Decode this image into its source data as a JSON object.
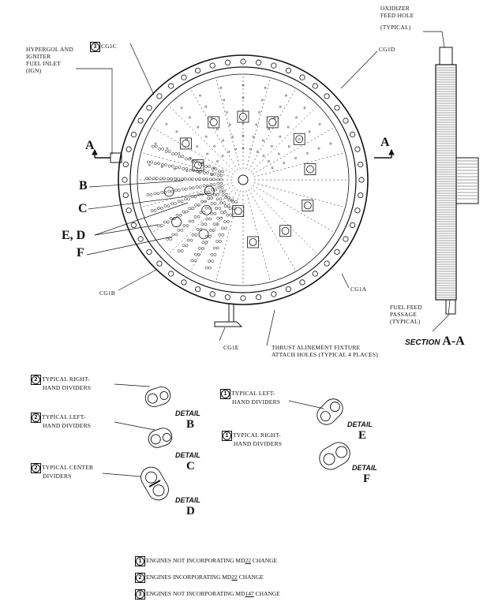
{
  "labels": {
    "hypergol": [
      "HYPERGOL AND",
      "IGNITER",
      "FUEL INLET",
      "(IGN)"
    ],
    "oxidizer": [
      "OXIDIZER",
      "FEED HOLE",
      "(TYPICAL)"
    ],
    "fuel_feed": [
      "FUEL FEED",
      "PASSAGE",
      "(TYPICAL)"
    ],
    "thrust": [
      "THRUST ALINEMENT FIXTURE",
      "ATTACH HOLES (TYPICAL 4 PLACES)"
    ],
    "cg1a": "CG1a",
    "cg1b": "CG1b",
    "cg1c": "CG1c",
    "cg1c_marker": "3",
    "cg1d": "CG1d",
    "cg1e": "CG1e",
    "section_a_left": "A",
    "section_a_right": "A",
    "callout_b": "B",
    "callout_c": "C",
    "callout_ed": "E, D",
    "callout_f": "F",
    "section_word": "SECTION",
    "section_letter": "A-A"
  },
  "details": [
    {
      "marker": "2",
      "lines": [
        "TYPICAL RIGHT-",
        "HAND DIVIDERS"
      ],
      "word": "DETAIL",
      "letter": "B"
    },
    {
      "marker": "2",
      "lines": [
        "TYPICAL LEFT-",
        "HAND DIVIDERS"
      ],
      "word": "DETAIL",
      "letter": "C"
    },
    {
      "marker": "2",
      "lines": [
        "TYPICAL CENTER",
        "DIVIDERS"
      ],
      "word": "DETAIL",
      "letter": "D"
    },
    {
      "marker": "1",
      "lines": [
        "TYPICAL LEFT-",
        "HAND DIVIDERS"
      ],
      "word": "DETAIL",
      "letter": "E"
    },
    {
      "marker": "1",
      "lines": [
        "TYPICAL RIGHT-",
        "HAND DIVIDERS"
      ],
      "word": "DETAIL",
      "letter": "F"
    }
  ],
  "notes": [
    {
      "marker": "1",
      "pre": "ENGINES NOT INCORPORATING MD",
      "u": "22",
      "post": " CHANGE"
    },
    {
      "marker": "2",
      "pre": "ENGINES INCORPORATING MD",
      "u": "22",
      "post": " CHANGE"
    },
    {
      "marker": "3",
      "pre": "ENGINES NOT INCORPORATING MD",
      "u": "147",
      "post": " CHANGE"
    }
  ]
}
